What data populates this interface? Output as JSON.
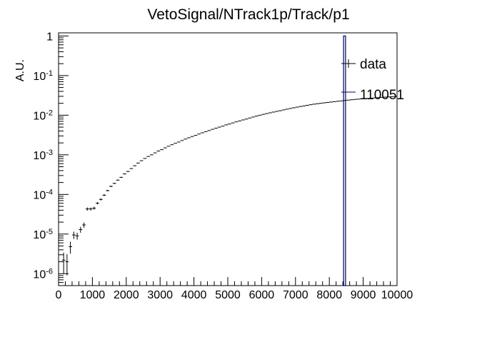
{
  "chart_data": {
    "type": "scatter",
    "title": "VetoSignal/NTrack1p/Track/p1",
    "xlabel": "",
    "ylabel": "A.U.",
    "xlim": [
      0,
      10000
    ],
    "ylim": [
      5e-07,
      1.2
    ],
    "y_scale": "log",
    "x_ticks": [
      "0",
      "1000",
      "2000",
      "3000",
      "4000",
      "5000",
      "6000",
      "7000",
      "8000",
      "9000",
      "10000"
    ],
    "y_ticks": [
      {
        "value": 1e-06,
        "mant": "10",
        "exp": "-6"
      },
      {
        "value": 1e-05,
        "mant": "10",
        "exp": "-5"
      },
      {
        "value": 0.0001,
        "mant": "10",
        "exp": "-4"
      },
      {
        "value": 0.001,
        "mant": "10",
        "exp": "-3"
      },
      {
        "value": 0.01,
        "mant": "10",
        "exp": "-2"
      },
      {
        "value": 0.1,
        "mant": "10",
        "exp": "-1"
      },
      {
        "value": 1,
        "mant": "1",
        "exp": ""
      }
    ],
    "legend_position": "top-right",
    "series": [
      {
        "name": "data",
        "color": "#000000",
        "x": [
          150,
          250,
          350,
          450,
          550,
          650,
          750,
          850,
          950,
          1050,
          1150,
          1250,
          1350,
          1450,
          1550,
          1650,
          1750,
          1850,
          1950,
          2050,
          2150,
          2250,
          2350,
          2450,
          2550,
          2650,
          2750,
          2850,
          2950,
          3050,
          3150,
          3250,
          3350,
          3450,
          3550,
          3650,
          3750,
          3850,
          3950,
          4050,
          4150,
          4250,
          4350,
          4450,
          4550,
          4650,
          4750,
          4850,
          4950,
          5050,
          5150,
          5250,
          5350,
          5450,
          5550,
          5650,
          5750,
          5850,
          5950,
          6050,
          6150,
          6250,
          6350,
          6450,
          6550,
          6650,
          6750,
          6850,
          6950,
          7050,
          7150,
          7250,
          7350,
          7450,
          7550,
          7650,
          7750,
          7850,
          7950,
          8050,
          8150,
          8250,
          8350,
          8450,
          8550,
          8650,
          8750,
          8850,
          8950,
          9050,
          9150,
          9250,
          9350,
          9450,
          9550,
          9650,
          9750,
          9850,
          9950
        ],
        "y": [
          2.2e-06,
          2e-06,
          4.8e-06,
          9.5e-06,
          9e-06,
          1.3e-05,
          1.7e-05,
          4.3e-05,
          4.3e-05,
          4.5e-05,
          6e-05,
          7.5e-05,
          9.6e-05,
          0.000125,
          0.00016,
          0.00019,
          0.00023,
          0.00027,
          0.00033,
          0.00038,
          0.00045,
          0.00053,
          0.00062,
          0.00071,
          0.00081,
          0.00091,
          0.001,
          0.00112,
          0.00125,
          0.00135,
          0.0015,
          0.00165,
          0.0018,
          0.00195,
          0.0021,
          0.0023,
          0.0025,
          0.0027,
          0.0029,
          0.0031,
          0.00335,
          0.0036,
          0.00385,
          0.0041,
          0.0044,
          0.0047,
          0.005,
          0.0053,
          0.0057,
          0.006,
          0.0064,
          0.0068,
          0.0072,
          0.0076,
          0.008,
          0.0085,
          0.009,
          0.0095,
          0.01,
          0.0105,
          0.011,
          0.0115,
          0.012,
          0.0125,
          0.013,
          0.0136,
          0.0142,
          0.0148,
          0.0154,
          0.016,
          0.0166,
          0.0172,
          0.0178,
          0.0184,
          0.019,
          0.0195,
          0.02,
          0.0205,
          0.021,
          0.0215,
          0.022,
          0.0225,
          0.023,
          0.0235,
          0.024,
          0.0245,
          0.025,
          0.0254,
          0.0258,
          0.0262,
          0.0266,
          0.027,
          0.0274,
          0.0278,
          0.0282,
          0.0286,
          0.029,
          0.0294,
          0.0298
        ],
        "yerr_lo": [
          1.2e-06,
          1.1e-06,
          1.6e-06,
          2e-06,
          1.8e-06,
          2.2e-06,
          2.5e-06,
          4e-06,
          3.8e-06,
          4e-06,
          4e-06,
          4.5e-06,
          5e-06,
          5e-06,
          6e-06,
          6e-06,
          7e-06,
          7e-06,
          8e-06,
          8e-06,
          9e-06,
          1e-05,
          1e-05,
          1.1e-05,
          1.2e-05,
          1.3e-05,
          1.4e-05,
          1.5e-05,
          1.6e-05,
          1.7e-05,
          1.8e-05,
          1.9e-05,
          2e-05,
          2.1e-05,
          2.2e-05,
          2.3e-05,
          2.4e-05,
          2.5e-05,
          2.6e-05,
          2.7e-05,
          2.8e-05,
          2.9e-05,
          3e-05,
          3.1e-05,
          3.2e-05,
          3.3e-05,
          3.4e-05,
          3.5e-05,
          3.6e-05,
          3.7e-05,
          3.8e-05,
          3.9e-05,
          4e-05,
          4.1e-05,
          4.2e-05,
          4.3e-05,
          4.4e-05,
          4.5e-05,
          4.6e-05,
          4.7e-05,
          4.8e-05,
          4.9e-05,
          5e-05,
          5.1e-05,
          5.2e-05,
          5.3e-05,
          5.4e-05,
          5.5e-05,
          5.6e-05,
          5.7e-05,
          5.8e-05,
          5.9e-05,
          6e-05,
          6.1e-05,
          6.2e-05,
          6.3e-05,
          6.4e-05,
          6.5e-05,
          6.6e-05,
          6.7e-05,
          6.8e-05,
          6.9e-05,
          7e-05,
          7.1e-05,
          7.2e-05,
          7.3e-05,
          7.4e-05,
          7.5e-05,
          7.6e-05,
          7.7e-05,
          7.8e-05,
          7.9e-05,
          8e-05,
          8.1e-05,
          8.2e-05,
          8.3e-05,
          8.4e-05,
          8.5e-05,
          8.6e-05
        ]
      },
      {
        "name": "110051",
        "color": "#000080",
        "bins": [
          {
            "x_lo": 8400,
            "x_hi": 8500,
            "y": 1.0
          }
        ]
      }
    ]
  }
}
